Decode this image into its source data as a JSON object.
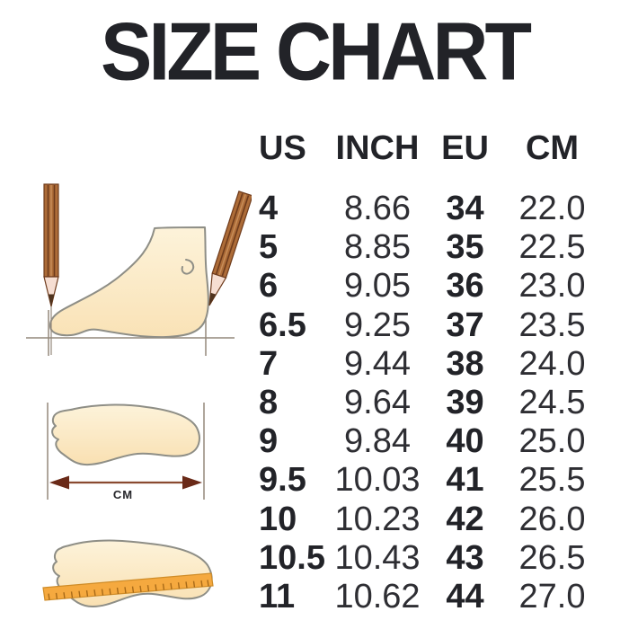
{
  "title": "SIZE CHART",
  "chart_data": {
    "type": "table",
    "title": "SIZE CHART",
    "columns": [
      "US",
      "INCH",
      "EU",
      "CM"
    ],
    "rows": [
      [
        "4",
        "8.66",
        "34",
        "22.0"
      ],
      [
        "5",
        "8.85",
        "35",
        "22.5"
      ],
      [
        "6",
        "9.05",
        "36",
        "23.0"
      ],
      [
        "6.5",
        "9.25",
        "37",
        "23.5"
      ],
      [
        "7",
        "9.44",
        "38",
        "24.0"
      ],
      [
        "8",
        "9.64",
        "39",
        "24.5"
      ],
      [
        "9",
        "9.84",
        "40",
        "25.0"
      ],
      [
        "9.5",
        "10.03",
        "41",
        "25.5"
      ],
      [
        "10",
        "10.23",
        "42",
        "26.0"
      ],
      [
        "10.5",
        "10.43",
        "43",
        "26.5"
      ],
      [
        "11",
        "10.62",
        "44",
        "27.0"
      ]
    ]
  },
  "illustrations": {
    "foot_side": {
      "icon": "foot-side-with-pencils-illustration"
    },
    "footprint_length": {
      "icon": "footprint-length-arrow-illustration",
      "label": "CM"
    },
    "footprint_ruler": {
      "icon": "footprint-with-ruler-illustration"
    }
  },
  "colors": {
    "background": "#ffffff",
    "text": "#222328",
    "foot_fill_light": "#fdf3da",
    "foot_fill_dark": "#f9e2b6",
    "foot_outline": "#8e8e86",
    "pencil_body": "#ad6c38",
    "pencil_stripe": "#6e3b1c",
    "pencil_tip": "#f6ded2",
    "ruler_orange": "#f5a93f",
    "arrow_dark": "#6a2a18",
    "guide_line": "#94887b"
  }
}
